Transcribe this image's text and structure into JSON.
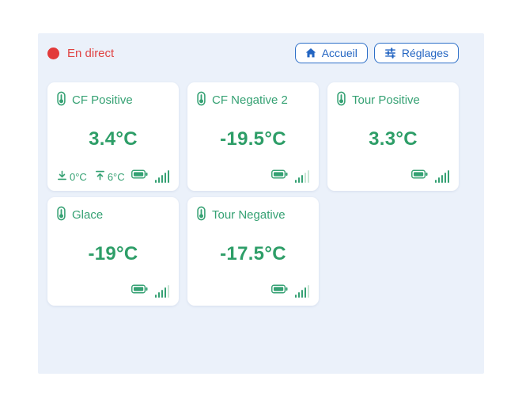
{
  "colors": {
    "accent_green": "#35a173",
    "temperature_green": "#2e9e68",
    "signal_faint_green": "#c7e5d4",
    "live_red": "#e04343",
    "button_blue": "#2365c2",
    "panel_background": "#ebf1fa",
    "card_background": "#ffffff"
  },
  "header": {
    "live_label": "En direct",
    "home_button_label": "Accueil",
    "settings_button_label": "Réglages"
  },
  "icons": {
    "live": "red-dot",
    "home": "home-icon",
    "settings": "sliders-icon",
    "card_title": "thermometer-icon",
    "min": "arrow-down-to-line-icon",
    "max": "arrow-up-to-line-icon",
    "battery": "battery-icon",
    "signal": "signal-bars-icon"
  },
  "cards": [
    {
      "title": "CF Positive",
      "temperature": "3.4°C",
      "min": "0°C",
      "max": "6°C",
      "battery": "full",
      "signal": 5
    },
    {
      "title": "CF Negative 2",
      "temperature": "-19.5°C",
      "battery": "full",
      "signal": 3
    },
    {
      "title": "Tour Positive",
      "temperature": "3.3°C",
      "battery": "full",
      "signal": 5
    },
    {
      "title": "Glace",
      "temperature": "-19°C",
      "battery": "full",
      "signal": 4
    },
    {
      "title": "Tour Negative",
      "temperature": "-17.5°C",
      "battery": "full",
      "signal": 4
    }
  ]
}
